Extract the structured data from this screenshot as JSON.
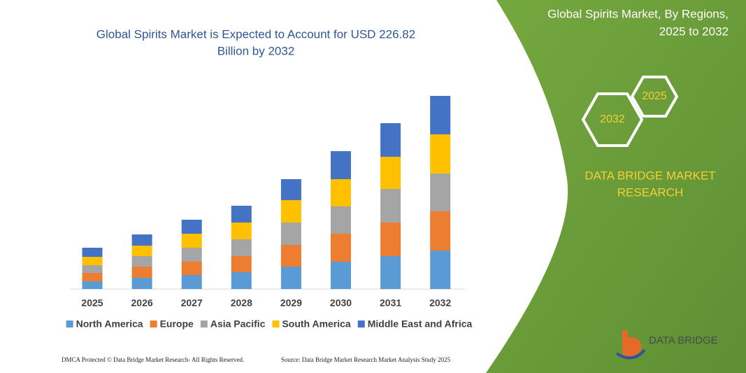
{
  "chart_data": {
    "type": "stacked_bar",
    "title": [
      "Global Spirits Market is Expected to Account for USD 226.82",
      "Billion by 2032"
    ],
    "categories": [
      "2025",
      "2026",
      "2027",
      "2028",
      "2029",
      "2030",
      "2031",
      "2032"
    ],
    "series": [
      {
        "name": "North America",
        "color": "#5b9bd5",
        "values": [
          11,
          16,
          20,
          24,
          32,
          39,
          47,
          55
        ]
      },
      {
        "name": "Europe",
        "color": "#ed7d31",
        "values": [
          12,
          16,
          19,
          23,
          31,
          40,
          48,
          56
        ]
      },
      {
        "name": "Asia Pacific",
        "color": "#a5a5a5",
        "values": [
          11,
          15,
          20,
          24,
          32,
          39,
          48,
          54
        ]
      },
      {
        "name": "South America",
        "color": "#ffc000",
        "values": [
          12,
          15,
          20,
          24,
          32,
          39,
          46,
          56
        ]
      },
      {
        "name": "Middle East and Africa",
        "color": "#4472c4",
        "values": [
          13,
          16,
          20,
          24,
          30,
          40,
          48,
          55
        ]
      }
    ]
  },
  "sidebar": {
    "title": [
      "Global Spirits Market, By Regions,",
      "2025 to 2032"
    ],
    "hex_small": "2025",
    "hex_large": "2032",
    "brand": [
      "DATA BRIDGE MARKET",
      "RESEARCH"
    ],
    "logo": "DATA BRIDGE"
  },
  "footer": {
    "left": "DMCA Protected © Data Bridge Market Research- All Rights Reserved.",
    "right": "Source: Data Bridge Market Research Market Analysis Study 2025"
  }
}
